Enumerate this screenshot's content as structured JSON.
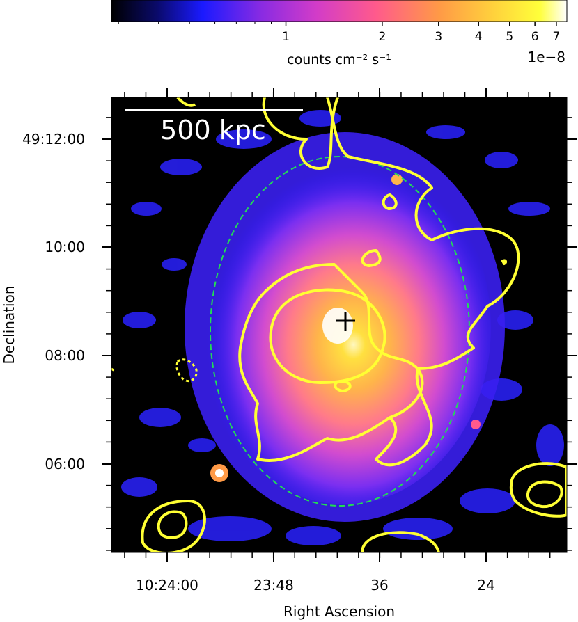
{
  "colorbar": {
    "ticks": [
      {
        "value": 1,
        "label": "1"
      },
      {
        "value": 2,
        "label": "2"
      },
      {
        "value": 3,
        "label": "3"
      },
      {
        "value": 4,
        "label": "4"
      },
      {
        "value": 5,
        "label": "5"
      },
      {
        "value": 6,
        "label": "6"
      },
      {
        "value": 7,
        "label": "7"
      }
    ],
    "label": "counts  cm⁻² s⁻¹",
    "exponent": "1e−8",
    "colors": [
      "#000000",
      "#0a0a6a",
      "#1a1aff",
      "#8a2be2",
      "#d23cc8",
      "#ff5a8c",
      "#ff9a46",
      "#ffd23c",
      "#ffff3a",
      "#ffffff"
    ]
  },
  "image": {
    "scalebar_label": "500 kpc",
    "contour_color": "#ffff33",
    "ellipse_color": "#22dd55",
    "x_axis": {
      "label": "Right Ascension",
      "ticks": [
        "10:24:00",
        "23:48",
        "36",
        "24"
      ]
    },
    "y_axis": {
      "label": "Declination",
      "ticks": [
        "49:12:00",
        "10:00",
        "08:00",
        "06:00"
      ]
    }
  }
}
